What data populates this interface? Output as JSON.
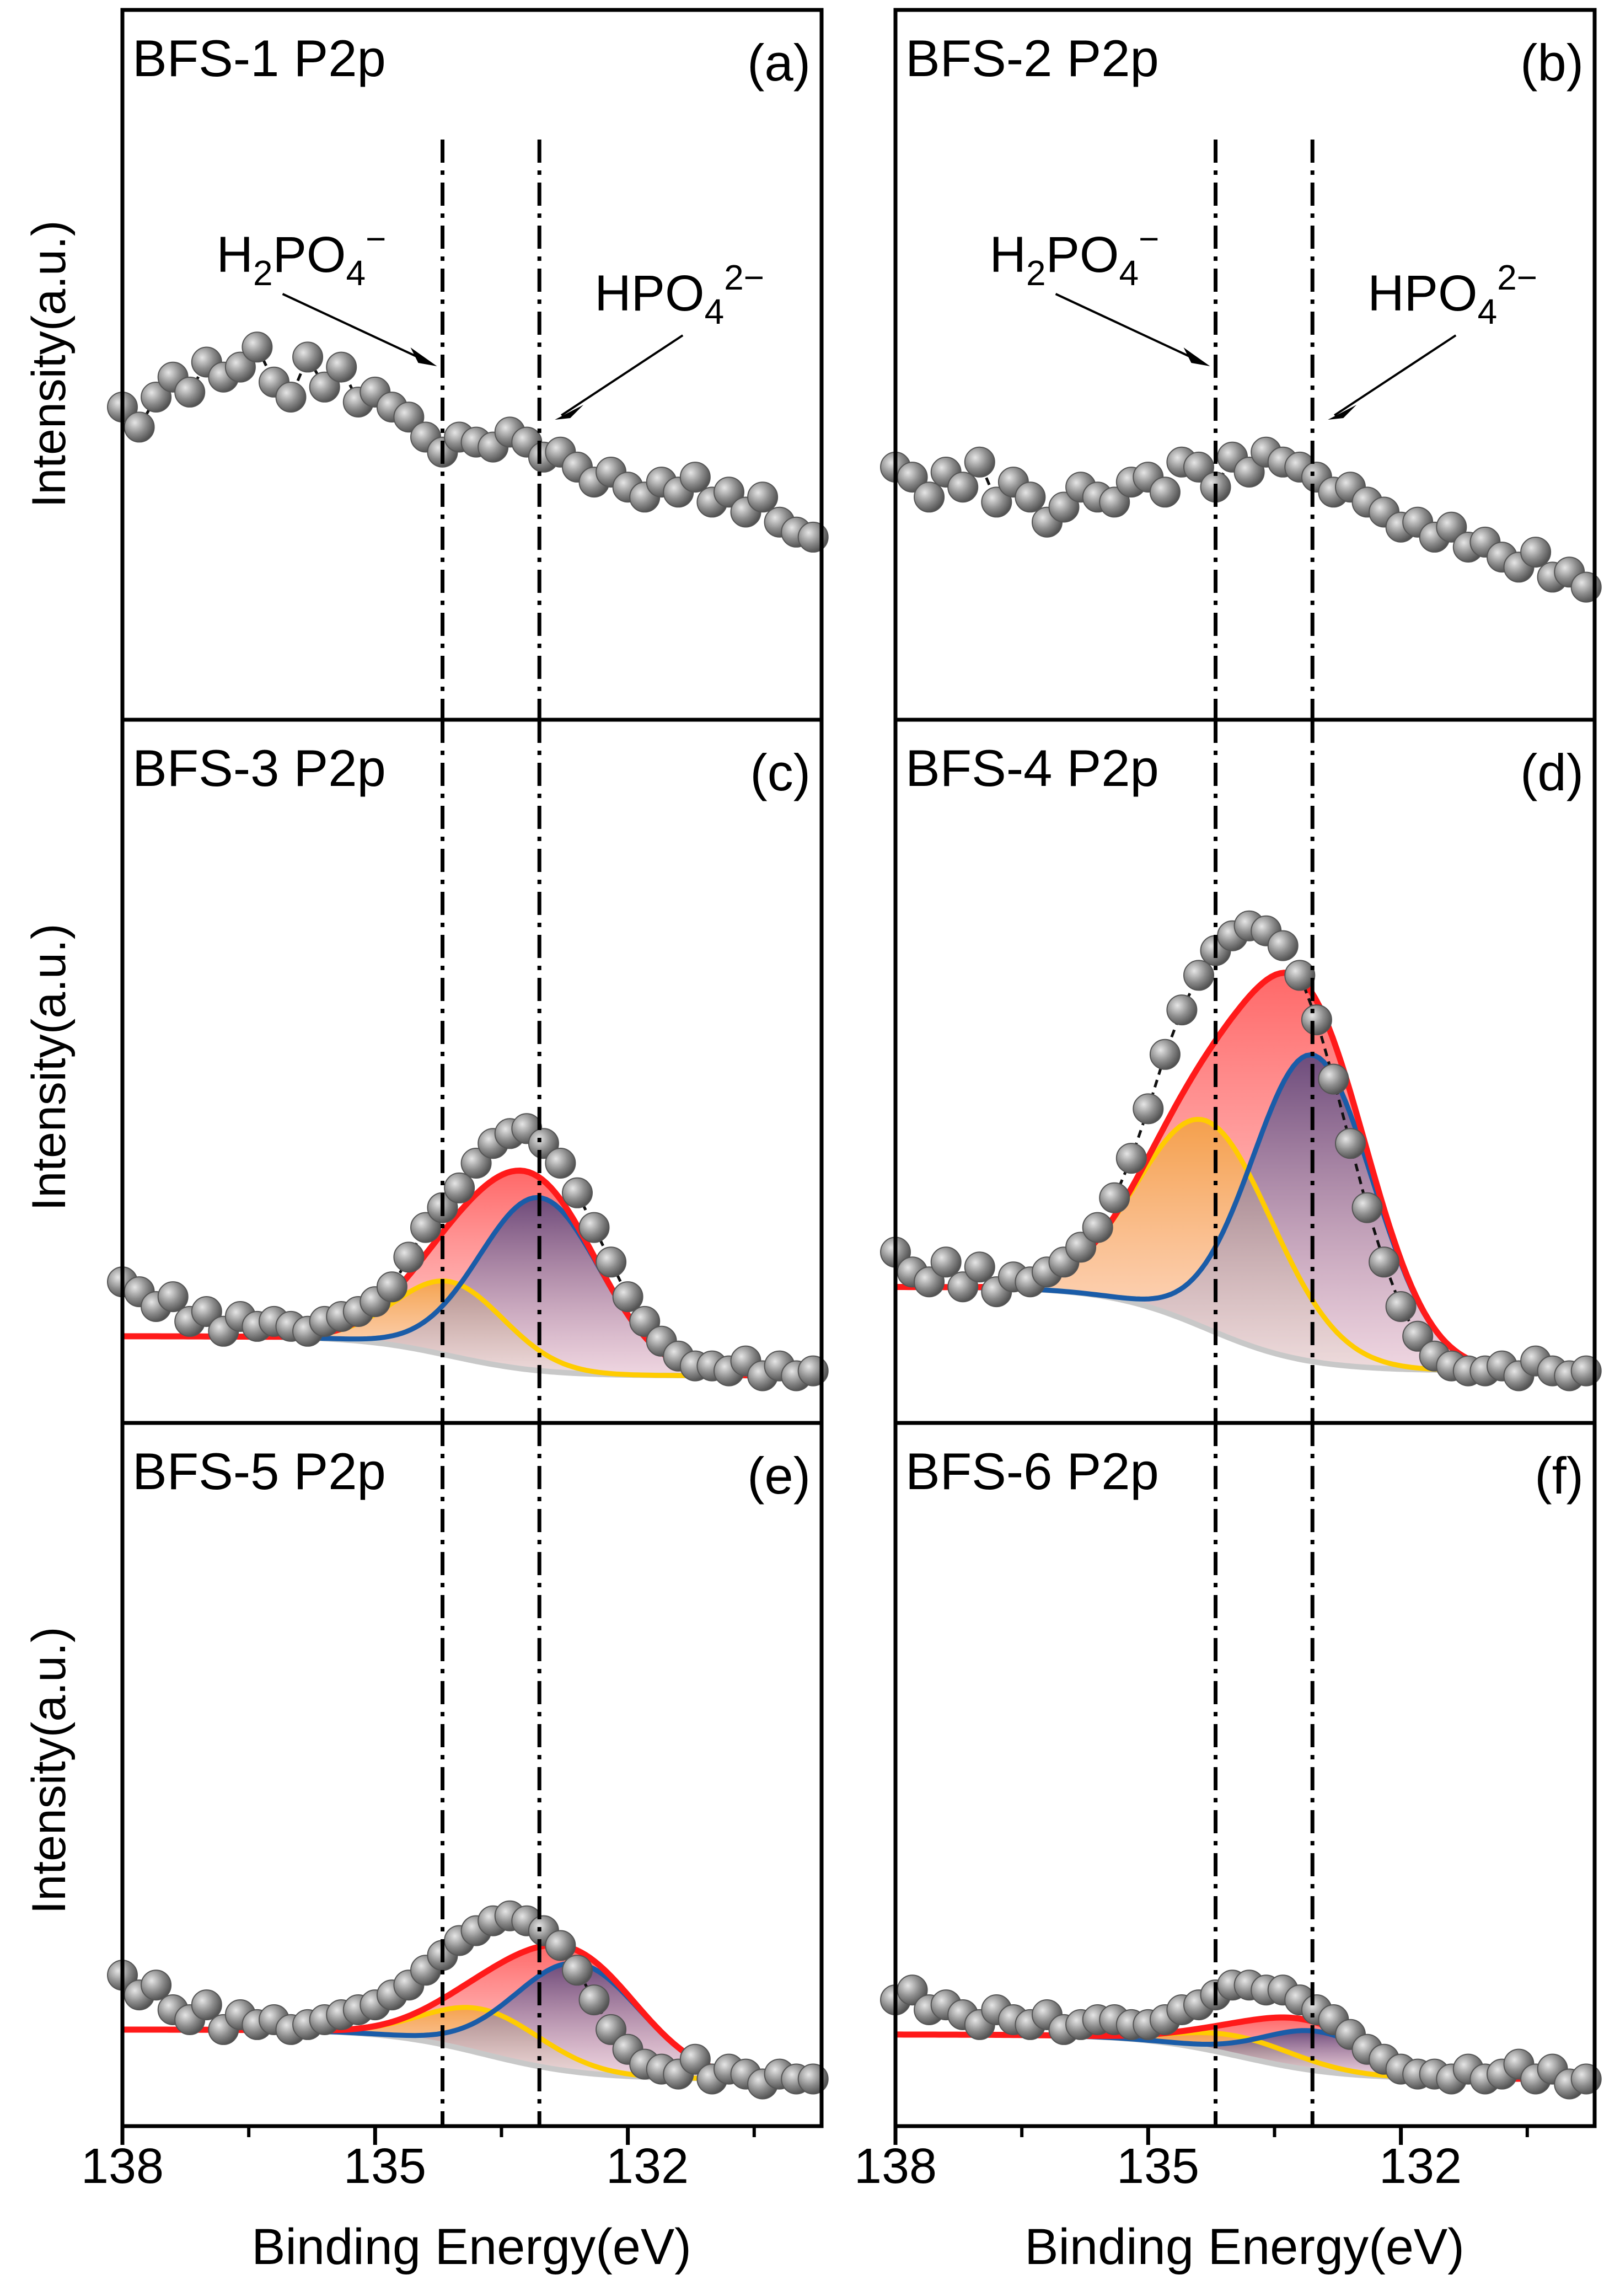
{
  "chart_data": {
    "type": "scatter",
    "figure_kind": "XPS P2p high-resolution spectra, 3x2 panel grid",
    "xlabel": "Binding Energy(eV)",
    "ylabel": "Intensity(a.u.)",
    "xlim": [
      138,
      129.7
    ],
    "x_ticks": [
      138,
      135,
      132
    ],
    "x_tick_labels": [
      "138",
      "135",
      "132"
    ],
    "x_minor_ticks": [
      136.5,
      133.5,
      130.5
    ],
    "ylim": [
      0,
      100
    ],
    "reference_lines": [
      {
        "name": "H2PO4-",
        "x": 134.2,
        "style": "dash-dot"
      },
      {
        "name": "HPO4 2-",
        "x": 133.05,
        "style": "dash-dot"
      }
    ],
    "panels": [
      {
        "id": "a",
        "sample": "BFS-1",
        "title": "BFS-1 P2p",
        "tag": "(a)",
        "fitted": false,
        "annotations": [
          {
            "base": "H",
            "sub": "2",
            "mid": "PO",
            "sub2": "4",
            "sup": "−"
          },
          {
            "base": "",
            "sub": "",
            "mid": "HPO",
            "sub2": "4",
            "sup": "2−"
          }
        ],
        "raw": {
          "x": [
            138.0,
            137.8,
            137.6,
            137.4,
            137.2,
            137.0,
            136.8,
            136.6,
            136.4,
            136.2,
            136.0,
            135.8,
            135.6,
            135.4,
            135.2,
            135.0,
            134.8,
            134.6,
            134.4,
            134.2,
            134.0,
            133.8,
            133.6,
            133.4,
            133.2,
            133.0,
            132.8,
            132.6,
            132.4,
            132.2,
            132.0,
            131.8,
            131.6,
            131.4,
            131.2,
            131.0,
            130.8,
            130.6,
            130.4,
            130.2,
            130.0,
            129.8
          ],
          "y": [
            54,
            50,
            56,
            60,
            57,
            63,
            60,
            62,
            66,
            59,
            56,
            64,
            58,
            62,
            55,
            57,
            54,
            52,
            48,
            45,
            48,
            47,
            46,
            49,
            47,
            44,
            45,
            42,
            39,
            41,
            38,
            36,
            39,
            37,
            40,
            35,
            37,
            33,
            36,
            31,
            29,
            28
          ]
        }
      },
      {
        "id": "b",
        "sample": "BFS-2",
        "title": "BFS-2 P2p",
        "tag": "(b)",
        "fitted": false,
        "annotations": [
          {
            "base": "H",
            "sub": "2",
            "mid": "PO",
            "sub2": "4",
            "sup": "−"
          },
          {
            "base": "",
            "sub": "",
            "mid": "HPO",
            "sub2": "4",
            "sup": "2−"
          }
        ],
        "raw": {
          "x": [
            138.0,
            137.8,
            137.6,
            137.4,
            137.2,
            137.0,
            136.8,
            136.6,
            136.4,
            136.2,
            136.0,
            135.8,
            135.6,
            135.4,
            135.2,
            135.0,
            134.8,
            134.6,
            134.4,
            134.2,
            134.0,
            133.8,
            133.6,
            133.4,
            133.2,
            133.0,
            132.8,
            132.6,
            132.4,
            132.2,
            132.0,
            131.8,
            131.6,
            131.4,
            131.2,
            131.0,
            130.8,
            130.6,
            130.4,
            130.2,
            130.0,
            129.8
          ],
          "y": [
            42,
            40,
            36,
            41,
            38,
            43,
            35,
            39,
            36,
            31,
            34,
            38,
            36,
            35,
            39,
            40,
            37,
            43,
            42,
            38,
            44,
            41,
            45,
            43,
            42,
            40,
            37,
            38,
            35,
            33,
            30,
            31,
            28,
            30,
            26,
            27,
            24,
            22,
            25,
            20,
            21,
            18
          ]
        }
      },
      {
        "id": "c",
        "sample": "BFS-3",
        "title": "BFS-3 P2p",
        "tag": "(c)",
        "fitted": true,
        "fit": {
          "baseline_hi": 9,
          "baseline_lo": 1,
          "baseline_center": 134.1,
          "baseline_width": 0.55,
          "peaks": [
            {
              "name": "H2PO4-",
              "color": "#ffcc00",
              "center": 134.1,
              "height": 15,
              "sigma": 0.65
            },
            {
              "name": "HPO4 2-",
              "color": "#1a5ca8",
              "center": 133.05,
              "height": 35,
              "sigma": 0.72
            }
          ]
        },
        "raw": {
          "x": [
            138.0,
            137.8,
            137.6,
            137.4,
            137.2,
            137.0,
            136.8,
            136.6,
            136.4,
            136.2,
            136.0,
            135.8,
            135.6,
            135.4,
            135.2,
            135.0,
            134.8,
            134.6,
            134.4,
            134.2,
            134.0,
            133.8,
            133.6,
            133.4,
            133.2,
            133.0,
            132.8,
            132.6,
            132.4,
            132.2,
            132.0,
            131.8,
            131.6,
            131.4,
            131.2,
            131.0,
            130.8,
            130.6,
            130.4,
            130.2,
            130.0,
            129.8
          ],
          "y": [
            20,
            18,
            15,
            17,
            12,
            14,
            10,
            13,
            11,
            12,
            11,
            10,
            12,
            13,
            14,
            16,
            19,
            25,
            31,
            35,
            39,
            44,
            48,
            50,
            51,
            48,
            44,
            38,
            31,
            24,
            17,
            12,
            8,
            5,
            3,
            3,
            2,
            4,
            1,
            3,
            1,
            2
          ]
        }
      },
      {
        "id": "d",
        "sample": "BFS-4",
        "title": "BFS-4 P2p",
        "tag": "(d)",
        "fitted": true,
        "fit": {
          "baseline_hi": 19,
          "baseline_lo": 2,
          "baseline_center": 134.3,
          "baseline_width": 0.6,
          "peaks": [
            {
              "name": "H2PO4-",
              "color": "#ffcc00",
              "center": 134.3,
              "height": 42,
              "sigma": 0.8
            },
            {
              "name": "HPO4 2-",
              "color": "#1a5ca8",
              "center": 133.05,
              "height": 62,
              "sigma": 0.72
            }
          ]
        },
        "raw": {
          "x": [
            138.0,
            137.8,
            137.6,
            137.4,
            137.2,
            137.0,
            136.8,
            136.6,
            136.4,
            136.2,
            136.0,
            135.8,
            135.6,
            135.4,
            135.2,
            135.0,
            134.8,
            134.6,
            134.4,
            134.2,
            134.0,
            133.8,
            133.6,
            133.4,
            133.2,
            133.0,
            132.8,
            132.6,
            132.4,
            132.2,
            132.0,
            131.8,
            131.6,
            131.4,
            131.2,
            131.0,
            130.8,
            130.6,
            130.4,
            130.2,
            130.0,
            129.8
          ],
          "y": [
            26,
            22,
            20,
            24,
            19,
            23,
            18,
            21,
            20,
            22,
            24,
            27,
            31,
            37,
            45,
            55,
            66,
            75,
            82,
            87,
            90,
            92,
            91,
            88,
            82,
            73,
            61,
            48,
            35,
            24,
            15,
            9,
            5,
            3,
            2,
            2,
            3,
            1,
            4,
            2,
            1,
            2
          ]
        }
      },
      {
        "id": "e",
        "sample": "BFS-5",
        "title": "BFS-5 P2p",
        "tag": "(e)",
        "fitted": true,
        "fit": {
          "baseline_hi": 11,
          "baseline_lo": 1,
          "baseline_center": 133.7,
          "baseline_width": 0.6,
          "peaks": [
            {
              "name": "H2PO4-",
              "color": "#ffcc00",
              "center": 133.7,
              "height": 9,
              "sigma": 0.7
            },
            {
              "name": "HPO4 2-",
              "color": "#1a5ca8",
              "center": 132.6,
              "height": 22,
              "sigma": 0.75
            }
          ]
        },
        "raw": {
          "x": [
            138.0,
            137.8,
            137.6,
            137.4,
            137.2,
            137.0,
            136.8,
            136.6,
            136.4,
            136.2,
            136.0,
            135.8,
            135.6,
            135.4,
            135.2,
            135.0,
            134.8,
            134.6,
            134.4,
            134.2,
            134.0,
            133.8,
            133.6,
            133.4,
            133.2,
            133.0,
            132.8,
            132.6,
            132.4,
            132.2,
            132.0,
            131.8,
            131.6,
            131.4,
            131.2,
            131.0,
            130.8,
            130.6,
            130.4,
            130.2,
            130.0,
            129.8
          ],
          "y": [
            22,
            18,
            20,
            15,
            13,
            16,
            11,
            14,
            12,
            13,
            11,
            12,
            13,
            14,
            15,
            16,
            18,
            20,
            23,
            26,
            29,
            31,
            33,
            34,
            33,
            31,
            28,
            23,
            17,
            11,
            7,
            4,
            3,
            2,
            5,
            1,
            3,
            2,
            0,
            2,
            1,
            1
          ]
        }
      },
      {
        "id": "f",
        "sample": "BFS-6",
        "title": "BFS-6 P2p",
        "tag": "(f)",
        "fitted": true,
        "fit": {
          "baseline_hi": 10,
          "baseline_lo": 1,
          "baseline_center": 133.9,
          "baseline_width": 0.6,
          "peaks": [
            {
              "name": "H2PO4-",
              "color": "#ffcc00",
              "center": 133.9,
              "height": 4,
              "sigma": 0.7
            },
            {
              "name": "HPO4 2-",
              "color": "#1a5ca8",
              "center": 133.0,
              "height": 8,
              "sigma": 0.65
            }
          ]
        },
        "raw": {
          "x": [
            138.0,
            137.8,
            137.6,
            137.4,
            137.2,
            137.0,
            136.8,
            136.6,
            136.4,
            136.2,
            136.0,
            135.8,
            135.6,
            135.4,
            135.2,
            135.0,
            134.8,
            134.6,
            134.4,
            134.2,
            134.0,
            133.8,
            133.6,
            133.4,
            133.2,
            133.0,
            132.8,
            132.6,
            132.4,
            132.2,
            132.0,
            131.8,
            131.6,
            131.4,
            131.2,
            131.0,
            130.8,
            130.6,
            130.4,
            130.2,
            130.0,
            129.8
          ],
          "y": [
            17,
            19,
            15,
            16,
            14,
            12,
            15,
            13,
            12,
            14,
            11,
            12,
            13,
            13,
            12,
            12,
            13,
            15,
            16,
            18,
            20,
            20,
            19,
            19,
            17,
            15,
            13,
            10,
            7,
            5,
            3,
            2,
            2,
            1,
            3,
            1,
            2,
            4,
            1,
            3,
            0,
            1
          ]
        }
      }
    ]
  },
  "colors": {
    "envelope": "#ff1a1a",
    "baseline": "#c8c8c8",
    "dot_fill": "#8c8c8c",
    "dot_edge": "#555555",
    "frame": "#000000"
  }
}
